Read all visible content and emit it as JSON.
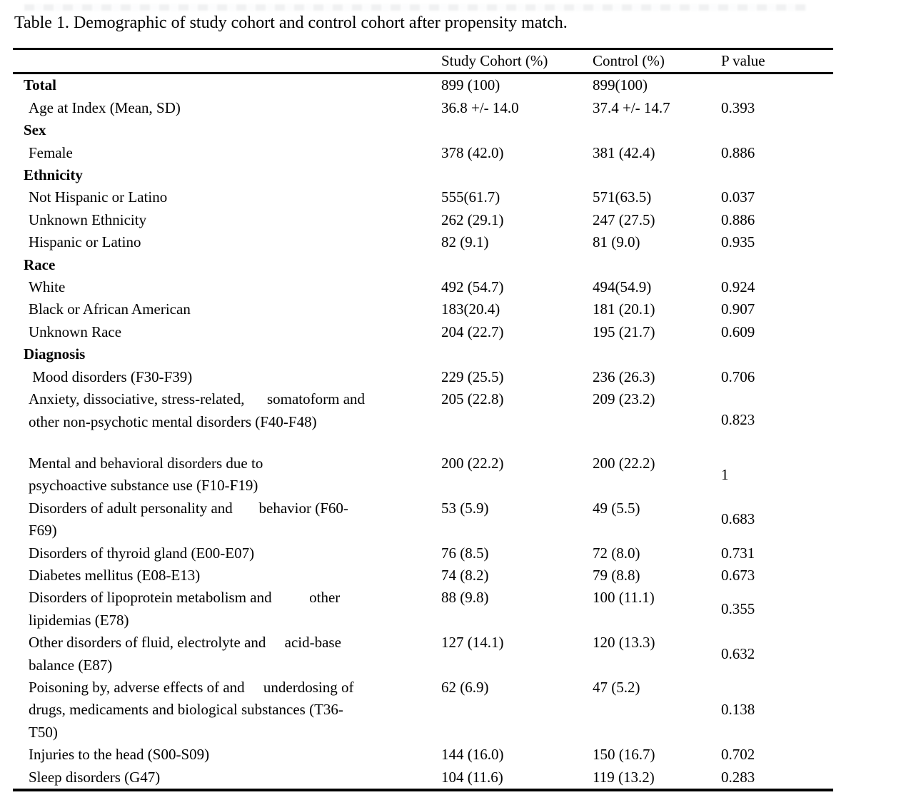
{
  "title": "Table 1. Demographic of study cohort and control cohort after propensity match.",
  "header": {
    "label": "",
    "study": "Study Cohort (%)",
    "control": "Control (%)",
    "p": "P value"
  },
  "rows": [
    {
      "section": true,
      "extra_gap": false,
      "lines": [
        "Total"
      ],
      "study": "899 (100)",
      "control": "899(100)",
      "p": ""
    },
    {
      "section": false,
      "extra_gap": false,
      "lines": [
        "Age at Index (Mean, SD)"
      ],
      "study": "36.8 +/- 14.0",
      "control": "37.4 +/- 14.7",
      "p": "0.393"
    },
    {
      "section": true,
      "extra_gap": false,
      "lines": [
        "Sex"
      ],
      "study": "",
      "control": "",
      "p": ""
    },
    {
      "section": false,
      "extra_gap": false,
      "lines": [
        "Female"
      ],
      "study": "378 (42.0)",
      "control": "381 (42.4)",
      "p": "0.886"
    },
    {
      "section": true,
      "extra_gap": false,
      "lines": [
        "Ethnicity"
      ],
      "study": "",
      "control": "",
      "p": ""
    },
    {
      "section": false,
      "extra_gap": false,
      "lines": [
        "Not Hispanic or Latino"
      ],
      "study": "555(61.7)",
      "control": "571(63.5)",
      "p": "0.037"
    },
    {
      "section": false,
      "extra_gap": false,
      "lines": [
        "Unknown Ethnicity"
      ],
      "study": "262 (29.1)",
      "control": "247 (27.5)",
      "p": "0.886"
    },
    {
      "section": false,
      "extra_gap": false,
      "lines": [
        "Hispanic or Latino"
      ],
      "study": "82 (9.1)",
      "control": "81 (9.0)",
      "p": "0.935"
    },
    {
      "section": true,
      "extra_gap": false,
      "lines": [
        "Race"
      ],
      "study": "",
      "control": "",
      "p": ""
    },
    {
      "section": false,
      "extra_gap": false,
      "lines": [
        "White"
      ],
      "study": "492 (54.7)",
      "control": "494(54.9)",
      "p": "0.924"
    },
    {
      "section": false,
      "extra_gap": false,
      "lines": [
        "Black or African American"
      ],
      "study": "183(20.4)",
      "control": "181 (20.1)",
      "p": "0.907"
    },
    {
      "section": false,
      "extra_gap": false,
      "lines": [
        "Unknown Race"
      ],
      "study": "204 (22.7)",
      "control": "195 (21.7)",
      "p": "0.609"
    },
    {
      "section": true,
      "extra_gap": false,
      "lines": [
        "Diagnosis"
      ],
      "study": "",
      "control": "",
      "p": ""
    },
    {
      "section": false,
      "extra_gap": false,
      "lines": [
        " Mood disorders (F30-F39)"
      ],
      "study": "229 (25.5)",
      "control": "236 (26.3)",
      "p": "0.706"
    },
    {
      "section": false,
      "extra_gap": true,
      "lines": [
        "Anxiety, dissociative, stress-related,      somatoform and",
        "other non-psychotic mental disorders (F40-F48)"
      ],
      "study": "205 (22.8)",
      "control": "209 (23.2)",
      "p": "0.823"
    },
    {
      "section": false,
      "extra_gap": false,
      "lines": [
        "Mental and behavioral disorders due to",
        "psychoactive substance use (F10-F19)"
      ],
      "study": "200 (22.2)",
      "control": "200 (22.2)",
      "p": "1"
    },
    {
      "section": false,
      "extra_gap": false,
      "lines": [
        "Disorders of adult personality and       behavior (F60-",
        "F69)"
      ],
      "study": "53 (5.9)",
      "control": "49 (5.5)",
      "p": "0.683"
    },
    {
      "section": false,
      "extra_gap": false,
      "lines": [
        "Disorders of thyroid gland (E00-E07)"
      ],
      "study": "76 (8.5)",
      "control": "72 (8.0)",
      "p": "0.731"
    },
    {
      "section": false,
      "extra_gap": false,
      "lines": [
        "Diabetes mellitus (E08-E13)"
      ],
      "study": "74 (8.2)",
      "control": "79 (8.8)",
      "p": "0.673"
    },
    {
      "section": false,
      "extra_gap": false,
      "lines": [
        "Disorders of lipoprotein metabolism and          other",
        "lipidemias (E78)"
      ],
      "study": "88 (9.8)",
      "control": "100 (11.1)",
      "p": "0.355"
    },
    {
      "section": false,
      "extra_gap": false,
      "lines": [
        "Other disorders of fluid, electrolyte and     acid-base",
        "balance (E87)"
      ],
      "study": "127 (14.1)",
      "control": "120 (13.3)",
      "p": "0.632"
    },
    {
      "section": false,
      "extra_gap": false,
      "lines": [
        "Poisoning by, adverse effects of and     underdosing of",
        "drugs, medicaments and biological substances (T36-",
        "T50)"
      ],
      "study": "62 (6.9)",
      "control": "47 (5.2)",
      "p": "0.138"
    },
    {
      "section": false,
      "extra_gap": false,
      "lines": [
        "Injuries to the head (S00-S09)"
      ],
      "study": "144 (16.0)",
      "control": "150 (16.7)",
      "p": "0.702"
    },
    {
      "section": false,
      "extra_gap": false,
      "lines": [
        "Sleep disorders (G47)"
      ],
      "study": "104 (11.6)",
      "control": "119 (13.2)",
      "p": "0.283"
    }
  ],
  "colors": {
    "text": "#000000",
    "background": "#ffffff",
    "rule": "#000000"
  }
}
